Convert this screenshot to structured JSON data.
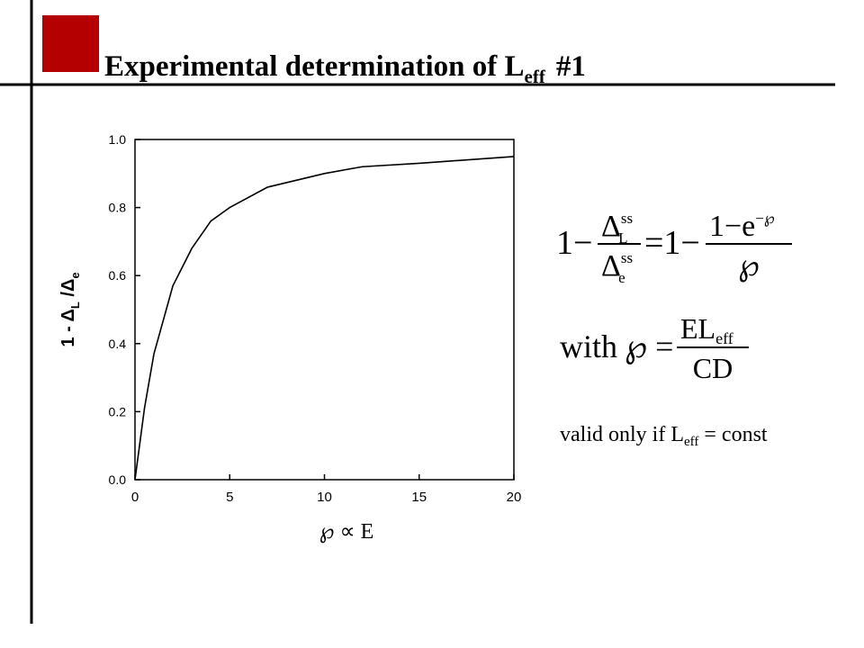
{
  "slide": {
    "title": "Experimental determination of L",
    "title_sub": "eff",
    "title_after": "#1",
    "equation_1": {
      "lhs": "1−",
      "num": "Δ",
      "num_sup": "ss",
      "num_sub": "L",
      "den": "Δ",
      "den_sup": "ss",
      "den_sub": "e",
      "mid": "=1−",
      "rnum": "1−e",
      "rnum_sup": "−℘",
      "rden": "℘"
    },
    "equation_2": {
      "with": "with",
      "lhs": "℘ =",
      "num": "EL",
      "num_sub": "eff",
      "den": "CD"
    },
    "note": {
      "text": "valid only if L",
      "sub": "eff",
      "rest": "= const"
    }
  },
  "chart_data": {
    "type": "line",
    "xlabel": "℘ ∝ E",
    "ylabel": [
      "1 - Δ",
      "L",
      " /Δ",
      "e"
    ],
    "x": [
      0,
      0.5,
      1,
      2,
      3,
      4,
      5,
      7,
      10,
      12,
      15,
      20
    ],
    "series": [
      {
        "color": "#000000",
        "values": [
          0,
          0.21,
          0.37,
          0.57,
          0.68,
          0.76,
          0.8,
          0.86,
          0.9,
          0.92,
          0.93,
          0.95
        ]
      }
    ],
    "xlim": [
      0,
      20
    ],
    "xticks": [
      0,
      5,
      10,
      15,
      20
    ],
    "ylim": [
      0,
      1
    ],
    "yticks": [
      {
        "value": 0,
        "label": "0.0"
      },
      0.2,
      0.4,
      0.6,
      0.8,
      {
        "value": 1,
        "label": "1.0"
      }
    ]
  }
}
